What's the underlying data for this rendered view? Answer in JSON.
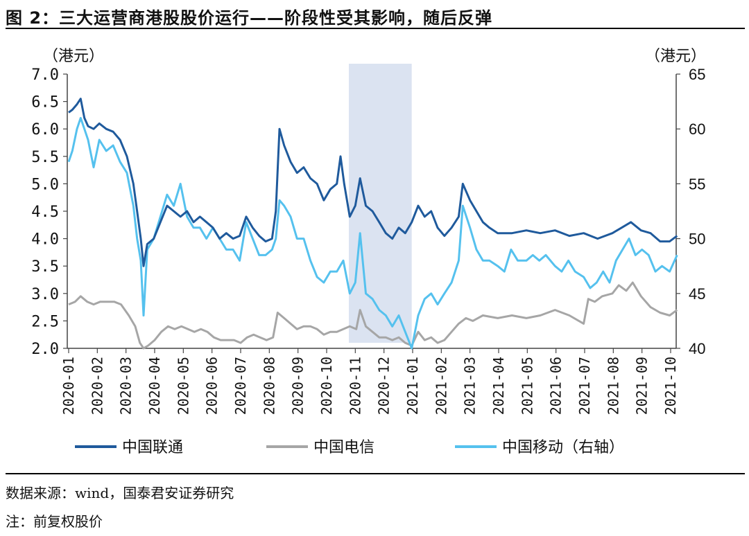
{
  "header": {
    "title": "图 2：三大运营商港股股价运行——阶段性受其影响，随后反弹"
  },
  "footer": {
    "source": "数据来源：wind，国泰君安证券研究",
    "note": "注：前复权股价"
  },
  "chart_data": {
    "type": "line",
    "title": "图 2：三大运营商港股股价运行——阶段性受其影响，随后反弹",
    "y_unit_left": "（港元）",
    "y_unit_right": "（港元）",
    "ylim_left": [
      2.0,
      7.0
    ],
    "ylim_right": [
      40,
      65
    ],
    "yticks_left": [
      "7.0",
      "6.5",
      "6.0",
      "5.5",
      "5.0",
      "4.5",
      "4.0",
      "3.5",
      "3.0",
      "2.5",
      "2.0"
    ],
    "yticks_right": [
      "65",
      "60",
      "55",
      "50",
      "45",
      "40"
    ],
    "x_categories": [
      "2020-01",
      "2020-02",
      "2020-03",
      "2020-04",
      "2020-05",
      "2020-06",
      "2020-07",
      "2020-08",
      "2020-09",
      "2020-10",
      "2020-11",
      "2020-12",
      "2021-01",
      "2021-02",
      "2021-03",
      "2021-04",
      "2021-05",
      "2021-06",
      "2021-07",
      "2021-08",
      "2021-09",
      "2021-10"
    ],
    "shaded_region": {
      "start": "2020-10-25",
      "end": "2020-12-31"
    },
    "legend_position": "bottom",
    "grid": false,
    "colors": {
      "unicom": "#1f5a9c",
      "telecom": "#a6a6a6",
      "mobile": "#55c1ee",
      "shade": "#dbe3f1"
    },
    "series": [
      {
        "name": "中国联通",
        "axis": "left",
        "points": [
          [
            "2020-01-01",
            6.3
          ],
          [
            "2020-01-05",
            6.35
          ],
          [
            "2020-01-10",
            6.45
          ],
          [
            "2020-01-14",
            6.55
          ],
          [
            "2020-01-18",
            6.2
          ],
          [
            "2020-01-22",
            6.05
          ],
          [
            "2020-01-28",
            6.0
          ],
          [
            "2020-02-03",
            6.1
          ],
          [
            "2020-02-10",
            6.0
          ],
          [
            "2020-02-17",
            5.95
          ],
          [
            "2020-02-24",
            5.8
          ],
          [
            "2020-03-02",
            5.5
          ],
          [
            "2020-03-09",
            5.0
          ],
          [
            "2020-03-13",
            4.5
          ],
          [
            "2020-03-17",
            4.0
          ],
          [
            "2020-03-20",
            3.5
          ],
          [
            "2020-03-24",
            3.9
          ],
          [
            "2020-03-31",
            4.0
          ],
          [
            "2020-04-07",
            4.3
          ],
          [
            "2020-04-14",
            4.6
          ],
          [
            "2020-04-21",
            4.5
          ],
          [
            "2020-04-28",
            4.4
          ],
          [
            "2020-05-05",
            4.5
          ],
          [
            "2020-05-12",
            4.3
          ],
          [
            "2020-05-19",
            4.4
          ],
          [
            "2020-05-26",
            4.3
          ],
          [
            "2020-06-02",
            4.2
          ],
          [
            "2020-06-09",
            4.0
          ],
          [
            "2020-06-16",
            4.1
          ],
          [
            "2020-06-23",
            4.0
          ],
          [
            "2020-06-30",
            4.05
          ],
          [
            "2020-07-07",
            4.4
          ],
          [
            "2020-07-14",
            4.2
          ],
          [
            "2020-07-21",
            4.05
          ],
          [
            "2020-07-28",
            3.95
          ],
          [
            "2020-08-04",
            4.0
          ],
          [
            "2020-08-08",
            4.5
          ],
          [
            "2020-08-12",
            6.0
          ],
          [
            "2020-08-17",
            5.7
          ],
          [
            "2020-08-24",
            5.4
          ],
          [
            "2020-08-31",
            5.2
          ],
          [
            "2020-09-07",
            5.3
          ],
          [
            "2020-09-14",
            5.1
          ],
          [
            "2020-09-21",
            5.0
          ],
          [
            "2020-09-28",
            4.7
          ],
          [
            "2020-10-05",
            4.9
          ],
          [
            "2020-10-12",
            5.0
          ],
          [
            "2020-10-16",
            5.5
          ],
          [
            "2020-10-20",
            5.0
          ],
          [
            "2020-10-26",
            4.4
          ],
          [
            "2020-11-01",
            4.6
          ],
          [
            "2020-11-06",
            5.1
          ],
          [
            "2020-11-12",
            4.6
          ],
          [
            "2020-11-19",
            4.5
          ],
          [
            "2020-11-26",
            4.3
          ],
          [
            "2020-12-03",
            4.1
          ],
          [
            "2020-12-10",
            4.0
          ],
          [
            "2020-12-17",
            4.2
          ],
          [
            "2020-12-24",
            4.1
          ],
          [
            "2020-12-31",
            4.3
          ],
          [
            "2021-01-07",
            4.6
          ],
          [
            "2021-01-14",
            4.4
          ],
          [
            "2021-01-21",
            4.5
          ],
          [
            "2021-01-28",
            4.2
          ],
          [
            "2021-02-04",
            4.05
          ],
          [
            "2021-02-11",
            4.2
          ],
          [
            "2021-02-18",
            4.4
          ],
          [
            "2021-02-22",
            5.0
          ],
          [
            "2021-03-01",
            4.7
          ],
          [
            "2021-03-08",
            4.5
          ],
          [
            "2021-03-15",
            4.3
          ],
          [
            "2021-03-22",
            4.2
          ],
          [
            "2021-03-31",
            4.1
          ],
          [
            "2021-04-15",
            4.1
          ],
          [
            "2021-04-30",
            4.15
          ],
          [
            "2021-05-15",
            4.1
          ],
          [
            "2021-05-31",
            4.15
          ],
          [
            "2021-06-15",
            4.05
          ],
          [
            "2021-06-30",
            4.1
          ],
          [
            "2021-07-15",
            4.0
          ],
          [
            "2021-07-31",
            4.1
          ],
          [
            "2021-08-10",
            4.2
          ],
          [
            "2021-08-20",
            4.3
          ],
          [
            "2021-08-31",
            4.15
          ],
          [
            "2021-09-10",
            4.1
          ],
          [
            "2021-09-20",
            3.95
          ],
          [
            "2021-09-30",
            3.95
          ],
          [
            "2021-10-08",
            4.05
          ]
        ]
      },
      {
        "name": "中国电信",
        "axis": "left",
        "points": [
          [
            "2020-01-01",
            2.8
          ],
          [
            "2020-01-08",
            2.85
          ],
          [
            "2020-01-14",
            2.95
          ],
          [
            "2020-01-21",
            2.85
          ],
          [
            "2020-01-28",
            2.8
          ],
          [
            "2020-02-04",
            2.85
          ],
          [
            "2020-02-11",
            2.85
          ],
          [
            "2020-02-18",
            2.85
          ],
          [
            "2020-02-25",
            2.8
          ],
          [
            "2020-03-04",
            2.6
          ],
          [
            "2020-03-11",
            2.4
          ],
          [
            "2020-03-16",
            2.1
          ],
          [
            "2020-03-20",
            2.0
          ],
          [
            "2020-03-25",
            2.05
          ],
          [
            "2020-04-01",
            2.15
          ],
          [
            "2020-04-08",
            2.3
          ],
          [
            "2020-04-15",
            2.4
          ],
          [
            "2020-04-22",
            2.35
          ],
          [
            "2020-04-29",
            2.4
          ],
          [
            "2020-05-06",
            2.35
          ],
          [
            "2020-05-13",
            2.3
          ],
          [
            "2020-05-20",
            2.35
          ],
          [
            "2020-05-27",
            2.3
          ],
          [
            "2020-06-03",
            2.2
          ],
          [
            "2020-06-10",
            2.15
          ],
          [
            "2020-06-17",
            2.15
          ],
          [
            "2020-06-24",
            2.15
          ],
          [
            "2020-07-01",
            2.1
          ],
          [
            "2020-07-08",
            2.2
          ],
          [
            "2020-07-15",
            2.25
          ],
          [
            "2020-07-22",
            2.2
          ],
          [
            "2020-07-29",
            2.15
          ],
          [
            "2020-08-05",
            2.2
          ],
          [
            "2020-08-10",
            2.65
          ],
          [
            "2020-08-17",
            2.55
          ],
          [
            "2020-08-24",
            2.45
          ],
          [
            "2020-08-31",
            2.35
          ],
          [
            "2020-09-07",
            2.4
          ],
          [
            "2020-09-14",
            2.4
          ],
          [
            "2020-09-21",
            2.35
          ],
          [
            "2020-09-28",
            2.25
          ],
          [
            "2020-10-05",
            2.3
          ],
          [
            "2020-10-12",
            2.3
          ],
          [
            "2020-10-19",
            2.35
          ],
          [
            "2020-10-26",
            2.4
          ],
          [
            "2020-11-02",
            2.35
          ],
          [
            "2020-11-06",
            2.7
          ],
          [
            "2020-11-12",
            2.4
          ],
          [
            "2020-11-19",
            2.3
          ],
          [
            "2020-11-26",
            2.2
          ],
          [
            "2020-12-03",
            2.2
          ],
          [
            "2020-12-10",
            2.15
          ],
          [
            "2020-12-17",
            2.2
          ],
          [
            "2020-12-24",
            2.1
          ],
          [
            "2020-12-31",
            2.05
          ],
          [
            "2021-01-07",
            2.3
          ],
          [
            "2021-01-14",
            2.15
          ],
          [
            "2021-01-21",
            2.2
          ],
          [
            "2021-01-28",
            2.1
          ],
          [
            "2021-02-04",
            2.15
          ],
          [
            "2021-02-11",
            2.3
          ],
          [
            "2021-02-18",
            2.45
          ],
          [
            "2021-02-25",
            2.55
          ],
          [
            "2021-03-04",
            2.5
          ],
          [
            "2021-03-15",
            2.6
          ],
          [
            "2021-03-31",
            2.55
          ],
          [
            "2021-04-15",
            2.6
          ],
          [
            "2021-04-30",
            2.55
          ],
          [
            "2021-05-15",
            2.6
          ],
          [
            "2021-05-31",
            2.7
          ],
          [
            "2021-06-15",
            2.6
          ],
          [
            "2021-06-30",
            2.45
          ],
          [
            "2021-07-05",
            2.9
          ],
          [
            "2021-07-12",
            2.85
          ],
          [
            "2021-07-20",
            2.95
          ],
          [
            "2021-07-31",
            3.0
          ],
          [
            "2021-08-07",
            3.15
          ],
          [
            "2021-08-15",
            3.05
          ],
          [
            "2021-08-22",
            3.2
          ],
          [
            "2021-08-31",
            2.95
          ],
          [
            "2021-09-10",
            2.75
          ],
          [
            "2021-09-20",
            2.65
          ],
          [
            "2021-09-30",
            2.6
          ],
          [
            "2021-10-08",
            2.7
          ]
        ]
      },
      {
        "name": "中国移动（右轴）",
        "axis": "right",
        "points": [
          [
            "2020-01-01",
            57
          ],
          [
            "2020-01-05",
            58
          ],
          [
            "2020-01-10",
            60
          ],
          [
            "2020-01-14",
            61
          ],
          [
            "2020-01-18",
            60
          ],
          [
            "2020-01-22",
            59
          ],
          [
            "2020-01-28",
            56.5
          ],
          [
            "2020-02-03",
            59
          ],
          [
            "2020-02-10",
            58
          ],
          [
            "2020-02-17",
            58.5
          ],
          [
            "2020-02-24",
            57
          ],
          [
            "2020-03-02",
            56
          ],
          [
            "2020-03-09",
            53
          ],
          [
            "2020-03-13",
            50
          ],
          [
            "2020-03-17",
            48
          ],
          [
            "2020-03-20",
            43
          ],
          [
            "2020-03-24",
            49
          ],
          [
            "2020-03-31",
            50
          ],
          [
            "2020-04-07",
            52
          ],
          [
            "2020-04-14",
            54
          ],
          [
            "2020-04-21",
            53
          ],
          [
            "2020-04-28",
            55
          ],
          [
            "2020-05-05",
            52
          ],
          [
            "2020-05-12",
            51
          ],
          [
            "2020-05-19",
            51
          ],
          [
            "2020-05-26",
            50
          ],
          [
            "2020-06-02",
            51
          ],
          [
            "2020-06-09",
            50
          ],
          [
            "2020-06-16",
            49
          ],
          [
            "2020-06-23",
            49
          ],
          [
            "2020-06-30",
            48
          ],
          [
            "2020-07-07",
            51.5
          ],
          [
            "2020-07-14",
            50
          ],
          [
            "2020-07-21",
            48.5
          ],
          [
            "2020-07-28",
            48.5
          ],
          [
            "2020-08-04",
            49
          ],
          [
            "2020-08-08",
            50
          ],
          [
            "2020-08-12",
            53.5
          ],
          [
            "2020-08-17",
            53
          ],
          [
            "2020-08-24",
            52
          ],
          [
            "2020-08-31",
            50
          ],
          [
            "2020-09-07",
            50
          ],
          [
            "2020-09-14",
            48
          ],
          [
            "2020-09-21",
            46.5
          ],
          [
            "2020-09-28",
            46
          ],
          [
            "2020-10-05",
            47
          ],
          [
            "2020-10-12",
            47
          ],
          [
            "2020-10-19",
            48
          ],
          [
            "2020-10-26",
            45
          ],
          [
            "2020-11-01",
            46
          ],
          [
            "2020-11-06",
            50.5
          ],
          [
            "2020-11-12",
            45
          ],
          [
            "2020-11-19",
            44.5
          ],
          [
            "2020-11-26",
            43.5
          ],
          [
            "2020-12-03",
            43
          ],
          [
            "2020-12-10",
            42
          ],
          [
            "2020-12-17",
            43
          ],
          [
            "2020-12-24",
            41.5
          ],
          [
            "2020-12-31",
            40
          ],
          [
            "2021-01-07",
            43
          ],
          [
            "2021-01-14",
            44.5
          ],
          [
            "2021-01-21",
            45
          ],
          [
            "2021-01-28",
            44
          ],
          [
            "2021-02-04",
            45
          ],
          [
            "2021-02-11",
            46
          ],
          [
            "2021-02-18",
            48
          ],
          [
            "2021-02-22",
            53
          ],
          [
            "2021-03-01",
            51
          ],
          [
            "2021-03-08",
            49
          ],
          [
            "2021-03-15",
            48
          ],
          [
            "2021-03-22",
            48
          ],
          [
            "2021-03-31",
            47.5
          ],
          [
            "2021-04-07",
            47
          ],
          [
            "2021-04-14",
            49
          ],
          [
            "2021-04-21",
            48
          ],
          [
            "2021-04-30",
            48
          ],
          [
            "2021-05-07",
            48.5
          ],
          [
            "2021-05-14",
            48
          ],
          [
            "2021-05-21",
            48.5
          ],
          [
            "2021-05-31",
            47.5
          ],
          [
            "2021-06-07",
            47
          ],
          [
            "2021-06-14",
            48
          ],
          [
            "2021-06-21",
            47
          ],
          [
            "2021-06-30",
            46.5
          ],
          [
            "2021-07-07",
            45.5
          ],
          [
            "2021-07-14",
            46
          ],
          [
            "2021-07-21",
            47
          ],
          [
            "2021-07-28",
            46
          ],
          [
            "2021-08-04",
            48
          ],
          [
            "2021-08-11",
            49
          ],
          [
            "2021-08-18",
            50
          ],
          [
            "2021-08-25",
            48.5
          ],
          [
            "2021-09-01",
            49
          ],
          [
            "2021-09-08",
            48.5
          ],
          [
            "2021-09-15",
            47
          ],
          [
            "2021-09-22",
            47.5
          ],
          [
            "2021-09-30",
            47
          ],
          [
            "2021-10-08",
            48.5
          ]
        ]
      }
    ]
  }
}
